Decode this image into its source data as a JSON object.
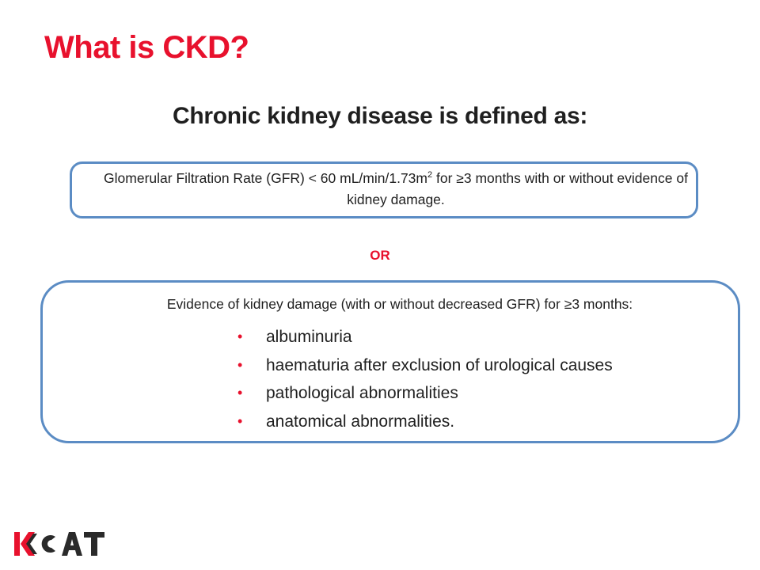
{
  "title": "What is CKD?",
  "subtitle": "Chronic kidney disease is defined as:",
  "criterion1": {
    "text_before_sup": "Glomerular Filtration Rate (GFR) < 60 mL/min/1.73m",
    "sup": "2",
    "text_after_sup": " for ≥3 months with or without evidence of kidney damage."
  },
  "separator": "OR",
  "criterion2": {
    "heading": "Evidence of kidney damage (with or without decreased GFR) for ≥3 months:",
    "bullets": [
      "albuminuria",
      "haematuria after exclusion of urological causes",
      "pathological abnormalities",
      "anatomical abnormalities."
    ]
  },
  "logo": {
    "text": "KCAT"
  },
  "colors": {
    "accent": "#e8112d",
    "border": "#5b8cc4",
    "text": "#1f1f1f"
  }
}
